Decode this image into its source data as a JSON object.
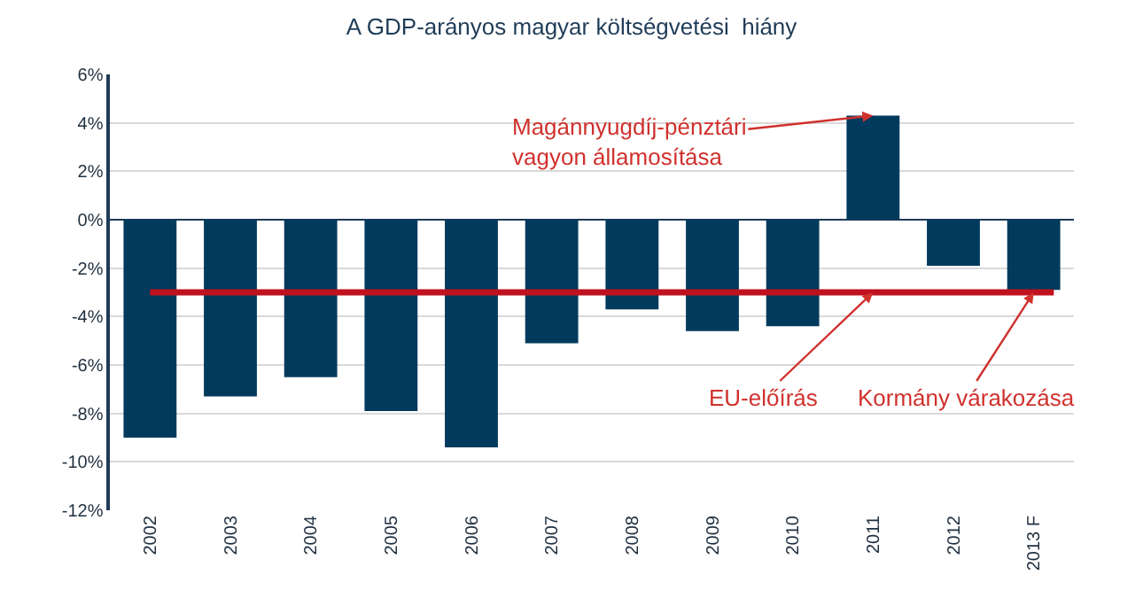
{
  "chart_data": {
    "type": "bar",
    "title": "A GDP-arányos magyar költségvetési  hiány",
    "categories": [
      "2002",
      "2003",
      "2004",
      "2005",
      "2006",
      "2007",
      "2008",
      "2009",
      "2010",
      "2011",
      "2012",
      "2013 F"
    ],
    "values": [
      -9.0,
      -7.3,
      -6.5,
      -7.9,
      -9.4,
      -5.1,
      -3.7,
      -4.6,
      -4.4,
      4.3,
      -1.9,
      -2.9
    ],
    "color": "#003a5d",
    "ylim": [
      -12,
      6
    ],
    "yticks": [
      {
        "value": -12,
        "label": "-12%"
      },
      {
        "value": -10,
        "label": "-10%"
      },
      {
        "value": -8,
        "label": "-8%"
      },
      {
        "value": -6,
        "label": "-6%"
      },
      {
        "value": -4,
        "label": "-4%"
      },
      {
        "value": -2,
        "label": "-2%"
      },
      {
        "value": 0,
        "label": "0%"
      },
      {
        "value": 2,
        "label": "2%"
      },
      {
        "value": 4,
        "label": "4%"
      },
      {
        "value": 6,
        "label": "6%"
      }
    ],
    "grid": "y",
    "ref_lines": [
      {
        "axis": "y",
        "value": -3,
        "color": "#c0111f",
        "line_style": "solid"
      }
    ],
    "annotations": [
      {
        "text": "Magánnyugdíj-pénztári\nvagyon államosítása",
        "x": "2011",
        "y": 4.3
      },
      {
        "text": "EU-előírás",
        "x": "2011",
        "y": -3
      },
      {
        "text": "Kormány várakozása",
        "x": "2013 F",
        "y": -3
      }
    ]
  }
}
